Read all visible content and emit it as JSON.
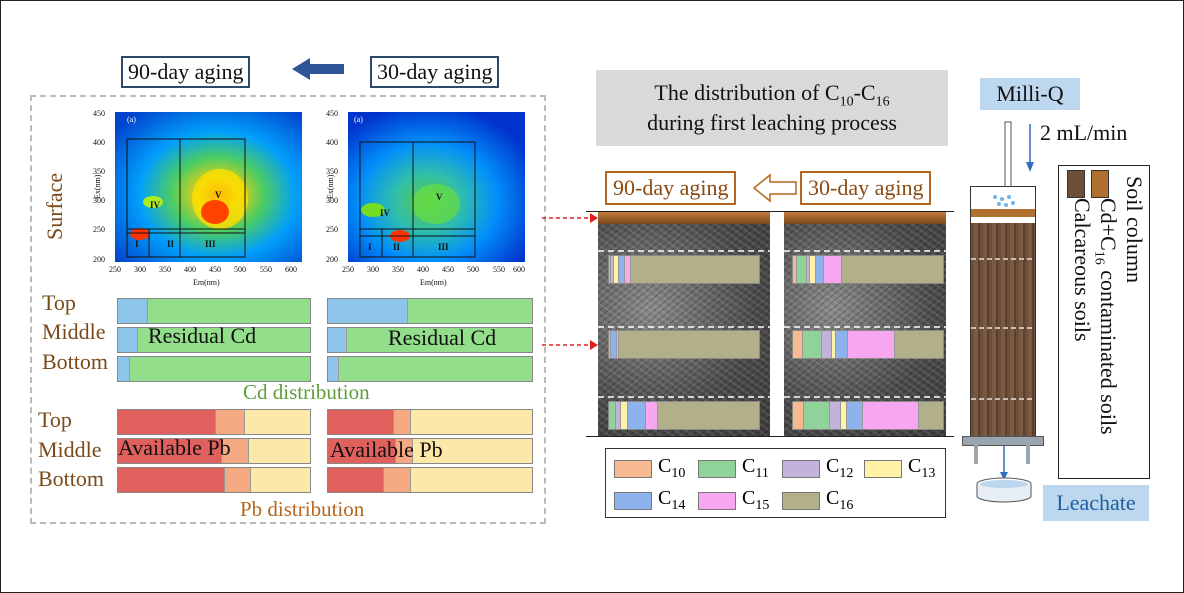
{
  "left_panel": {
    "label_90": "90-day aging",
    "label_30": "30-day aging",
    "surface": "Surface",
    "eem": {
      "panel_label": "(a)",
      "x_axis_title": "Em(nm)",
      "y_axis_title": "Ex(nm)",
      "x_ticks": [
        "250",
        "300",
        "350",
        "400",
        "450",
        "500",
        "550",
        "600"
      ],
      "y_ticks": [
        "450",
        "400",
        "350",
        "300",
        "250",
        "200"
      ],
      "regions": [
        "I",
        "II",
        "III",
        "IV",
        "V"
      ]
    },
    "layer_labels": [
      "Top",
      "Middle",
      "Bottom"
    ],
    "cd_label": "Residual Cd",
    "cd_caption": "Cd distribution",
    "pb_label": "Available Pb",
    "pb_caption": "Pb distribution",
    "cd_bars": {
      "aging_90": [
        [
          0.15,
          0.85
        ],
        [
          0.1,
          0.9
        ],
        [
          0.06,
          0.94
        ]
      ],
      "aging_30": [
        [
          0.39,
          0.61
        ],
        [
          0.09,
          0.91
        ],
        [
          0.05,
          0.95
        ]
      ]
    },
    "pb_bars": {
      "aging_90": [
        [
          0.51,
          0.15,
          0.34
        ],
        [
          0.54,
          0.14,
          0.32
        ],
        [
          0.56,
          0.13,
          0.31
        ]
      ],
      "aging_30": [
        [
          0.32,
          0.08,
          0.6
        ],
        [
          0.33,
          0.08,
          0.59
        ],
        [
          0.27,
          0.13,
          0.6
        ]
      ]
    },
    "colors": {
      "cd_available": "#8ec3ea",
      "cd_residual": "#93de8a",
      "pb_red": "#e0605e",
      "pb_orange": "#f4a983",
      "pb_yellow": "#fce8a8"
    }
  },
  "center_panel": {
    "title_line1": "The distribution of C",
    "title_sub1": "10",
    "title_mid": "-C",
    "title_sub2": "16",
    "title_line2": "during first leaching process",
    "label_90": "90-day aging",
    "label_30": "30-day aging",
    "legend": [
      {
        "label": "C",
        "sub": "10",
        "color": "#f7b98f"
      },
      {
        "label": "C",
        "sub": "11",
        "color": "#8fd39a"
      },
      {
        "label": "C",
        "sub": "12",
        "color": "#c3b2d9"
      },
      {
        "label": "C",
        "sub": "13",
        "color": "#fff2a6"
      },
      {
        "label": "C",
        "sub": "14",
        "color": "#8eb3ec"
      },
      {
        "label": "C",
        "sub": "15",
        "color": "#f7a6f0"
      },
      {
        "label": "C",
        "sub": "16",
        "color": "#b1b08a"
      }
    ],
    "columns": {
      "aging_90": [
        [
          0,
          0.01,
          0.01,
          0.03,
          0.03,
          0.04,
          0.88
        ],
        [
          0,
          0.01,
          0,
          0,
          0.03,
          0.01,
          0.95
        ],
        [
          0,
          0.04,
          0.03,
          0.04,
          0.12,
          0.07,
          0.7
        ]
      ],
      "aging_30": [
        [
          0.02,
          0.06,
          0.02,
          0.03,
          0.05,
          0.12,
          0.7
        ],
        [
          0.06,
          0.13,
          0.06,
          0.02,
          0.08,
          0.32,
          0.33
        ],
        [
          0.07,
          0.17,
          0.07,
          0.04,
          0.1,
          0.38,
          0.17
        ]
      ]
    }
  },
  "right_panel": {
    "milliq": "Milli-Q",
    "flow": "2 mL/min",
    "leachate": "Leachate",
    "legend_soil_column": "Soil column",
    "legend_cd_pre": "Cd+C",
    "legend_cd_sub": "16",
    "legend_cd_post": " contaminated soils",
    "legend_calc": "Calcareous soils"
  }
}
